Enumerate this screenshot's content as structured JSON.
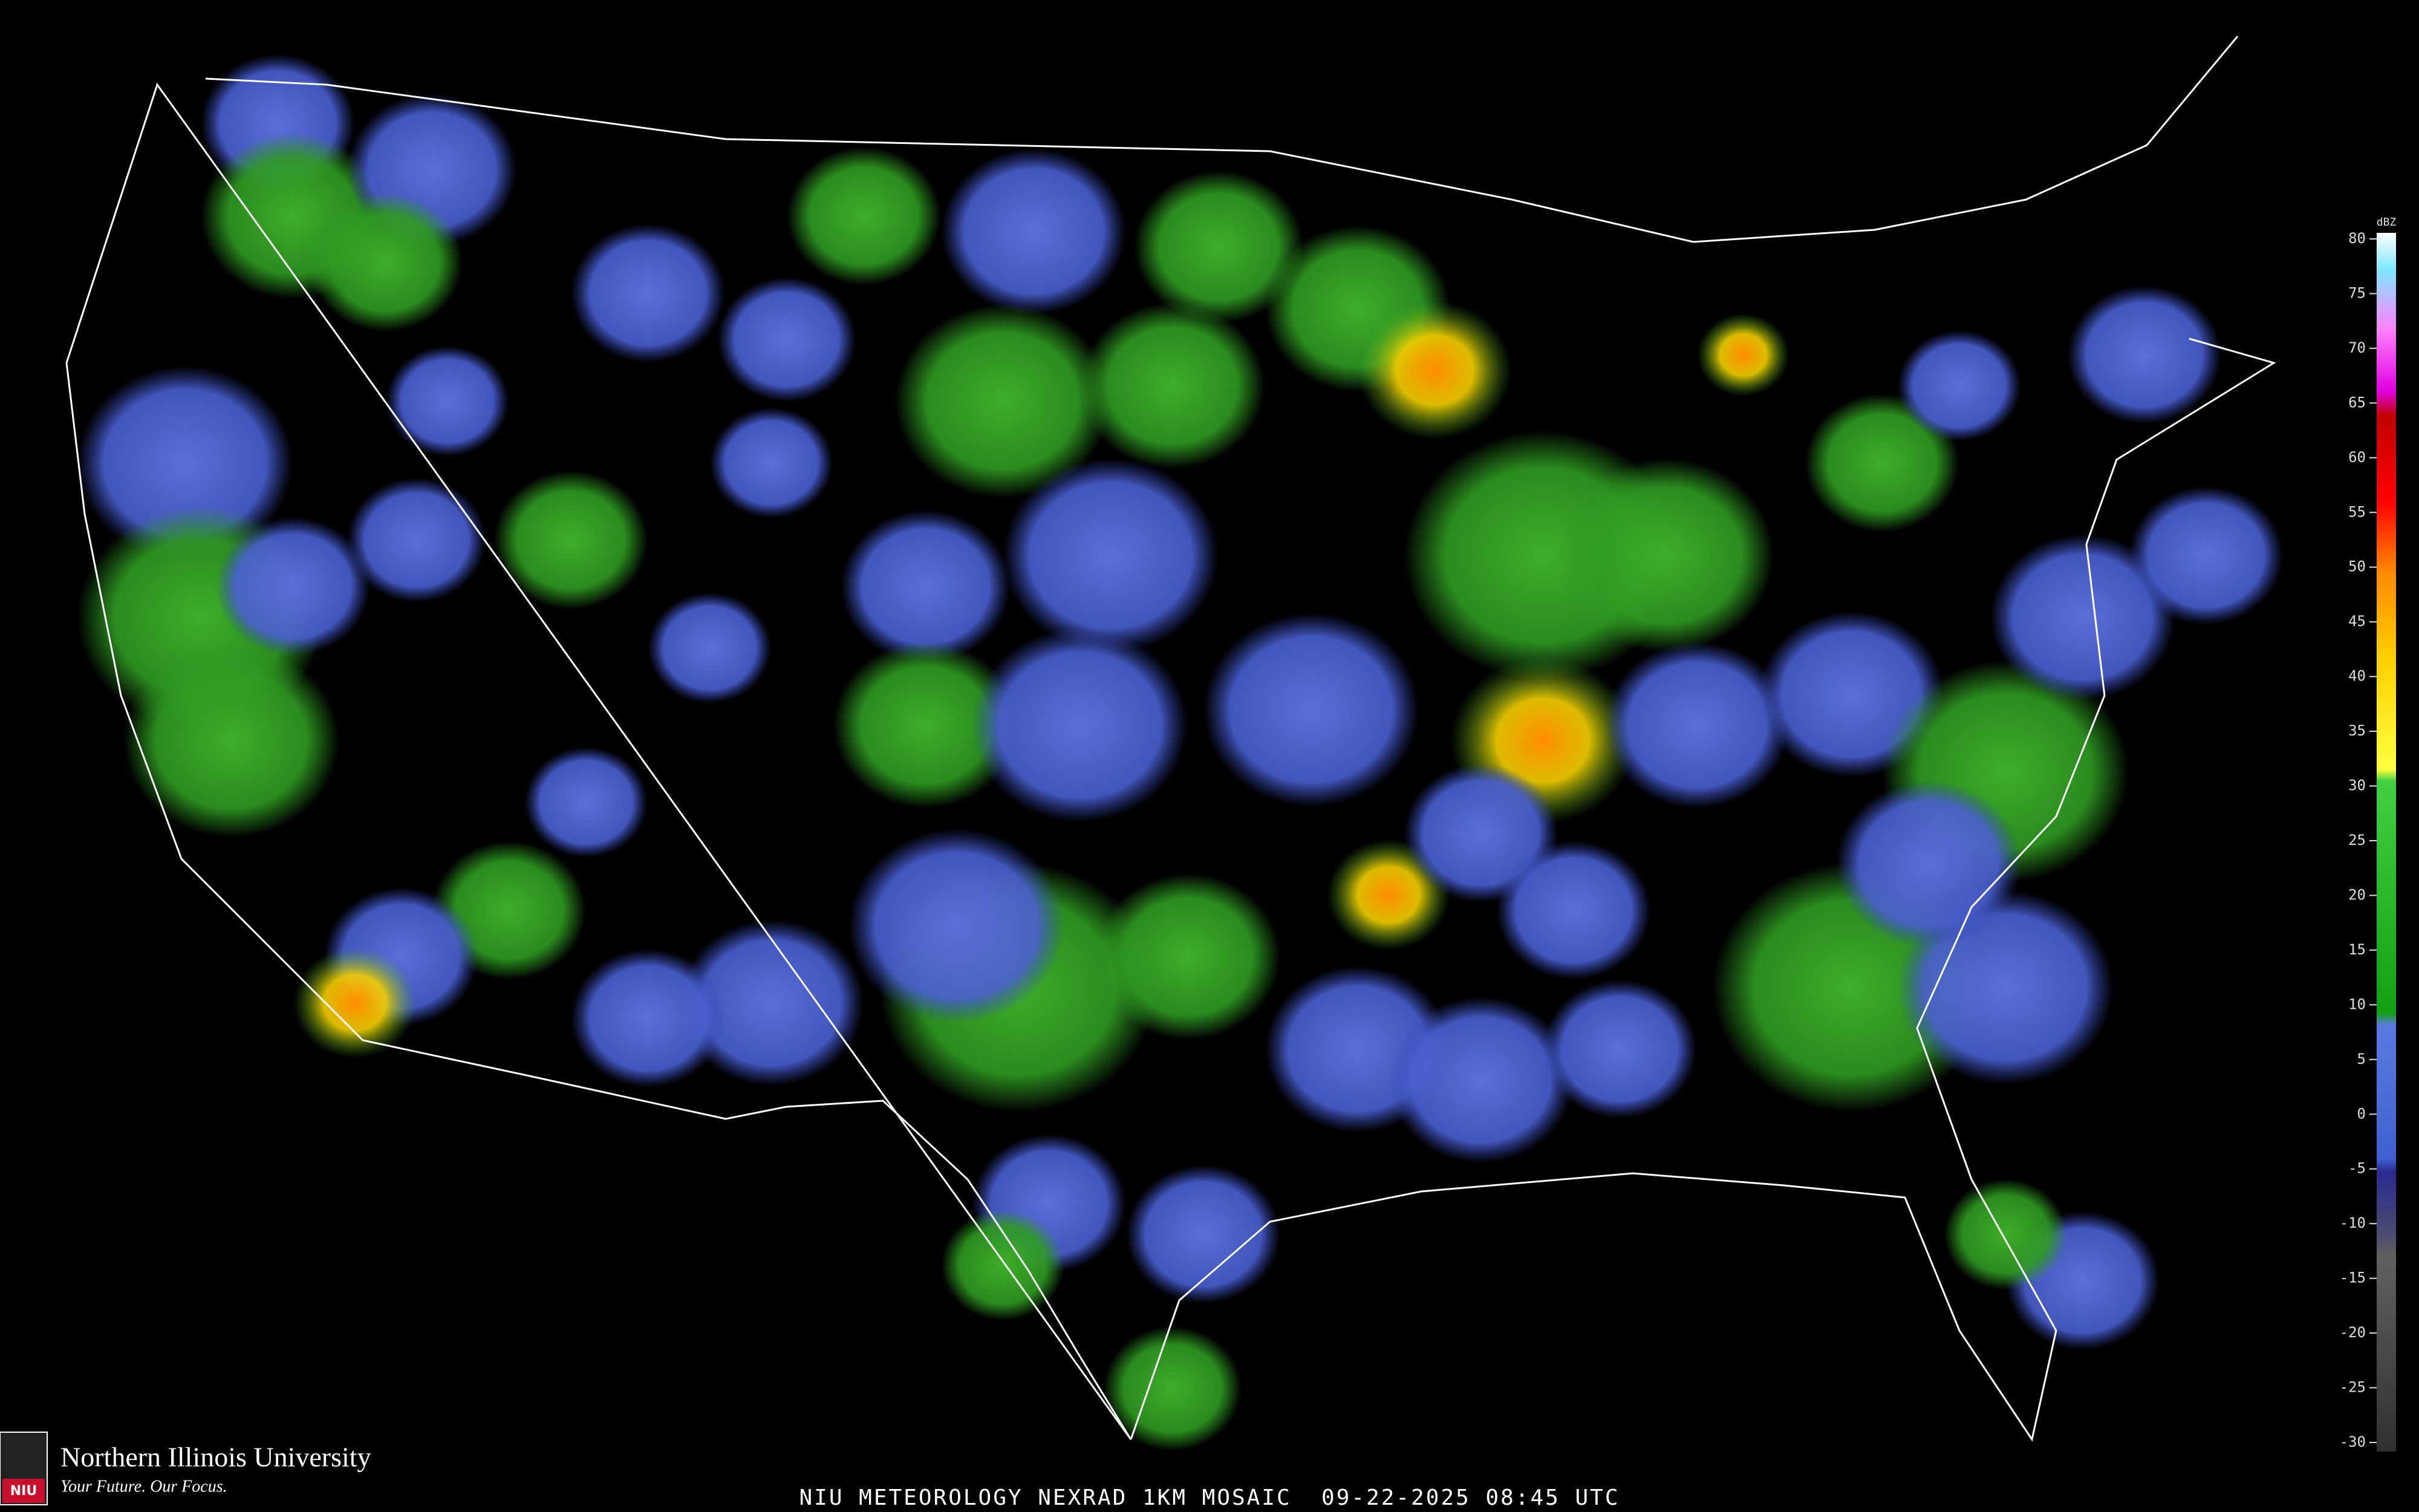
{
  "map": {
    "caption": "NIU METEOROLOGY NEXRAD 1KM MOSAIC  09-22-2025 08:45 UTC"
  },
  "logo": {
    "badge": "NIU",
    "name": "Northern Illinois University",
    "tagline": "Your Future. Our Focus."
  },
  "legend": {
    "unit": "dBZ",
    "ticks": [
      80,
      75,
      70,
      65,
      60,
      55,
      50,
      45,
      40,
      35,
      30,
      25,
      20,
      15,
      10,
      5,
      0,
      -5,
      -10,
      -15,
      -20,
      -25,
      -30
    ]
  }
}
